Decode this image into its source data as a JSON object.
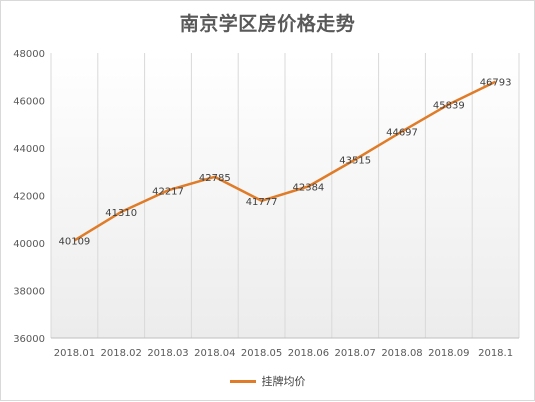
{
  "chart_data": {
    "type": "line",
    "title": "南京学区房价格走势",
    "categories": [
      "2018.01",
      "2018.02",
      "2018.03",
      "2018.04",
      "2018.05",
      "2018.06",
      "2018.07",
      "2018.08",
      "2018.09",
      "2018.1"
    ],
    "series": [
      {
        "name": "挂牌均价",
        "values": [
          40109,
          41310,
          42217,
          42785,
          41777,
          42384,
          43515,
          44697,
          45839,
          46793
        ],
        "color": "#e07b27"
      }
    ],
    "ylim": [
      36000,
      48000
    ],
    "yticks": [
      36000,
      38000,
      40000,
      42000,
      44000,
      46000,
      48000
    ],
    "legend_position": "bottom",
    "grid": "vertical"
  }
}
